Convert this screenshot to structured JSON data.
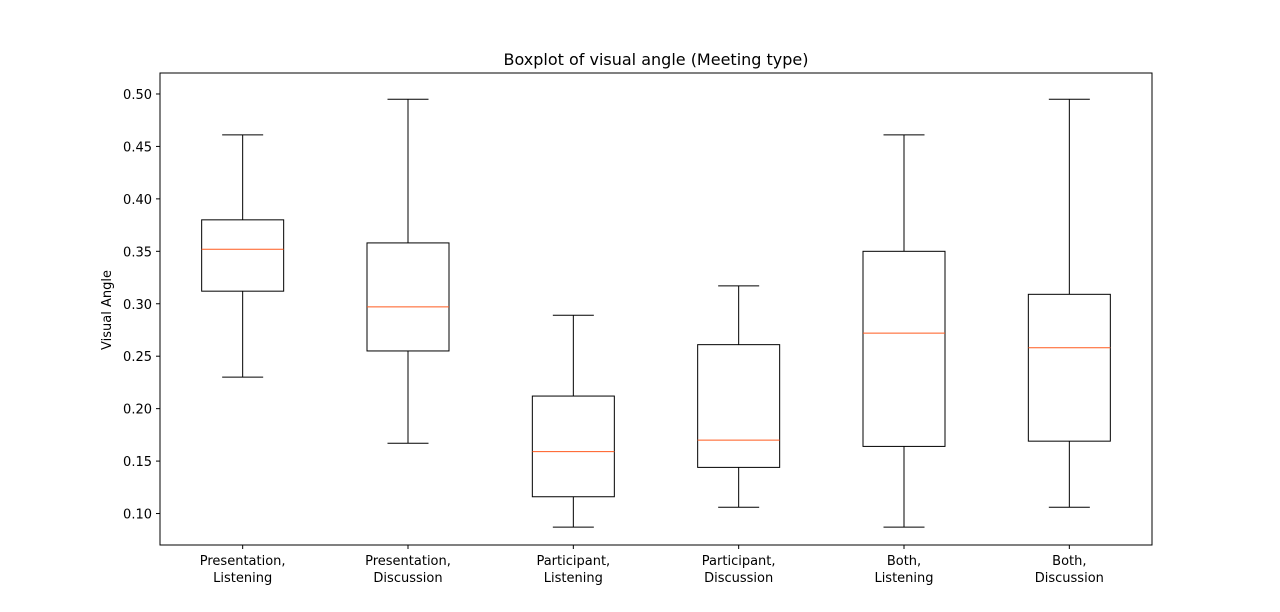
{
  "chart_data": {
    "type": "boxplot",
    "title": "Boxplot of visual angle (Meeting type)",
    "xlabel": "",
    "ylabel": "Visual Angle",
    "ylim": [
      0.07,
      0.52
    ],
    "yticks": [
      "0.10",
      "0.15",
      "0.20",
      "0.25",
      "0.30",
      "0.35",
      "0.40",
      "0.45",
      "0.50"
    ],
    "ytick_values": [
      0.1,
      0.15,
      0.2,
      0.25,
      0.3,
      0.35,
      0.4,
      0.45,
      0.5
    ],
    "grid": false,
    "categories": [
      [
        "Presentation,",
        "Listening"
      ],
      [
        "Presentation,",
        "Discussion"
      ],
      [
        "Participant,",
        "Listening"
      ],
      [
        "Participant,",
        "Discussion"
      ],
      [
        "Both,",
        "Listening"
      ],
      [
        "Both,",
        "Discussion"
      ]
    ],
    "boxes": [
      {
        "whislo": 0.23,
        "q1": 0.312,
        "med": 0.352,
        "q3": 0.38,
        "whishi": 0.461
      },
      {
        "whislo": 0.167,
        "q1": 0.255,
        "med": 0.297,
        "q3": 0.358,
        "whishi": 0.495
      },
      {
        "whislo": 0.087,
        "q1": 0.116,
        "med": 0.159,
        "q3": 0.212,
        "whishi": 0.289
      },
      {
        "whislo": 0.106,
        "q1": 0.144,
        "med": 0.17,
        "q3": 0.261,
        "whishi": 0.317
      },
      {
        "whislo": 0.087,
        "q1": 0.164,
        "med": 0.272,
        "q3": 0.35,
        "whishi": 0.461
      },
      {
        "whislo": 0.106,
        "q1": 0.169,
        "med": 0.258,
        "q3": 0.309,
        "whishi": 0.495
      }
    ],
    "colors": {
      "box": "#000000",
      "median": "#ff5a1f"
    }
  }
}
